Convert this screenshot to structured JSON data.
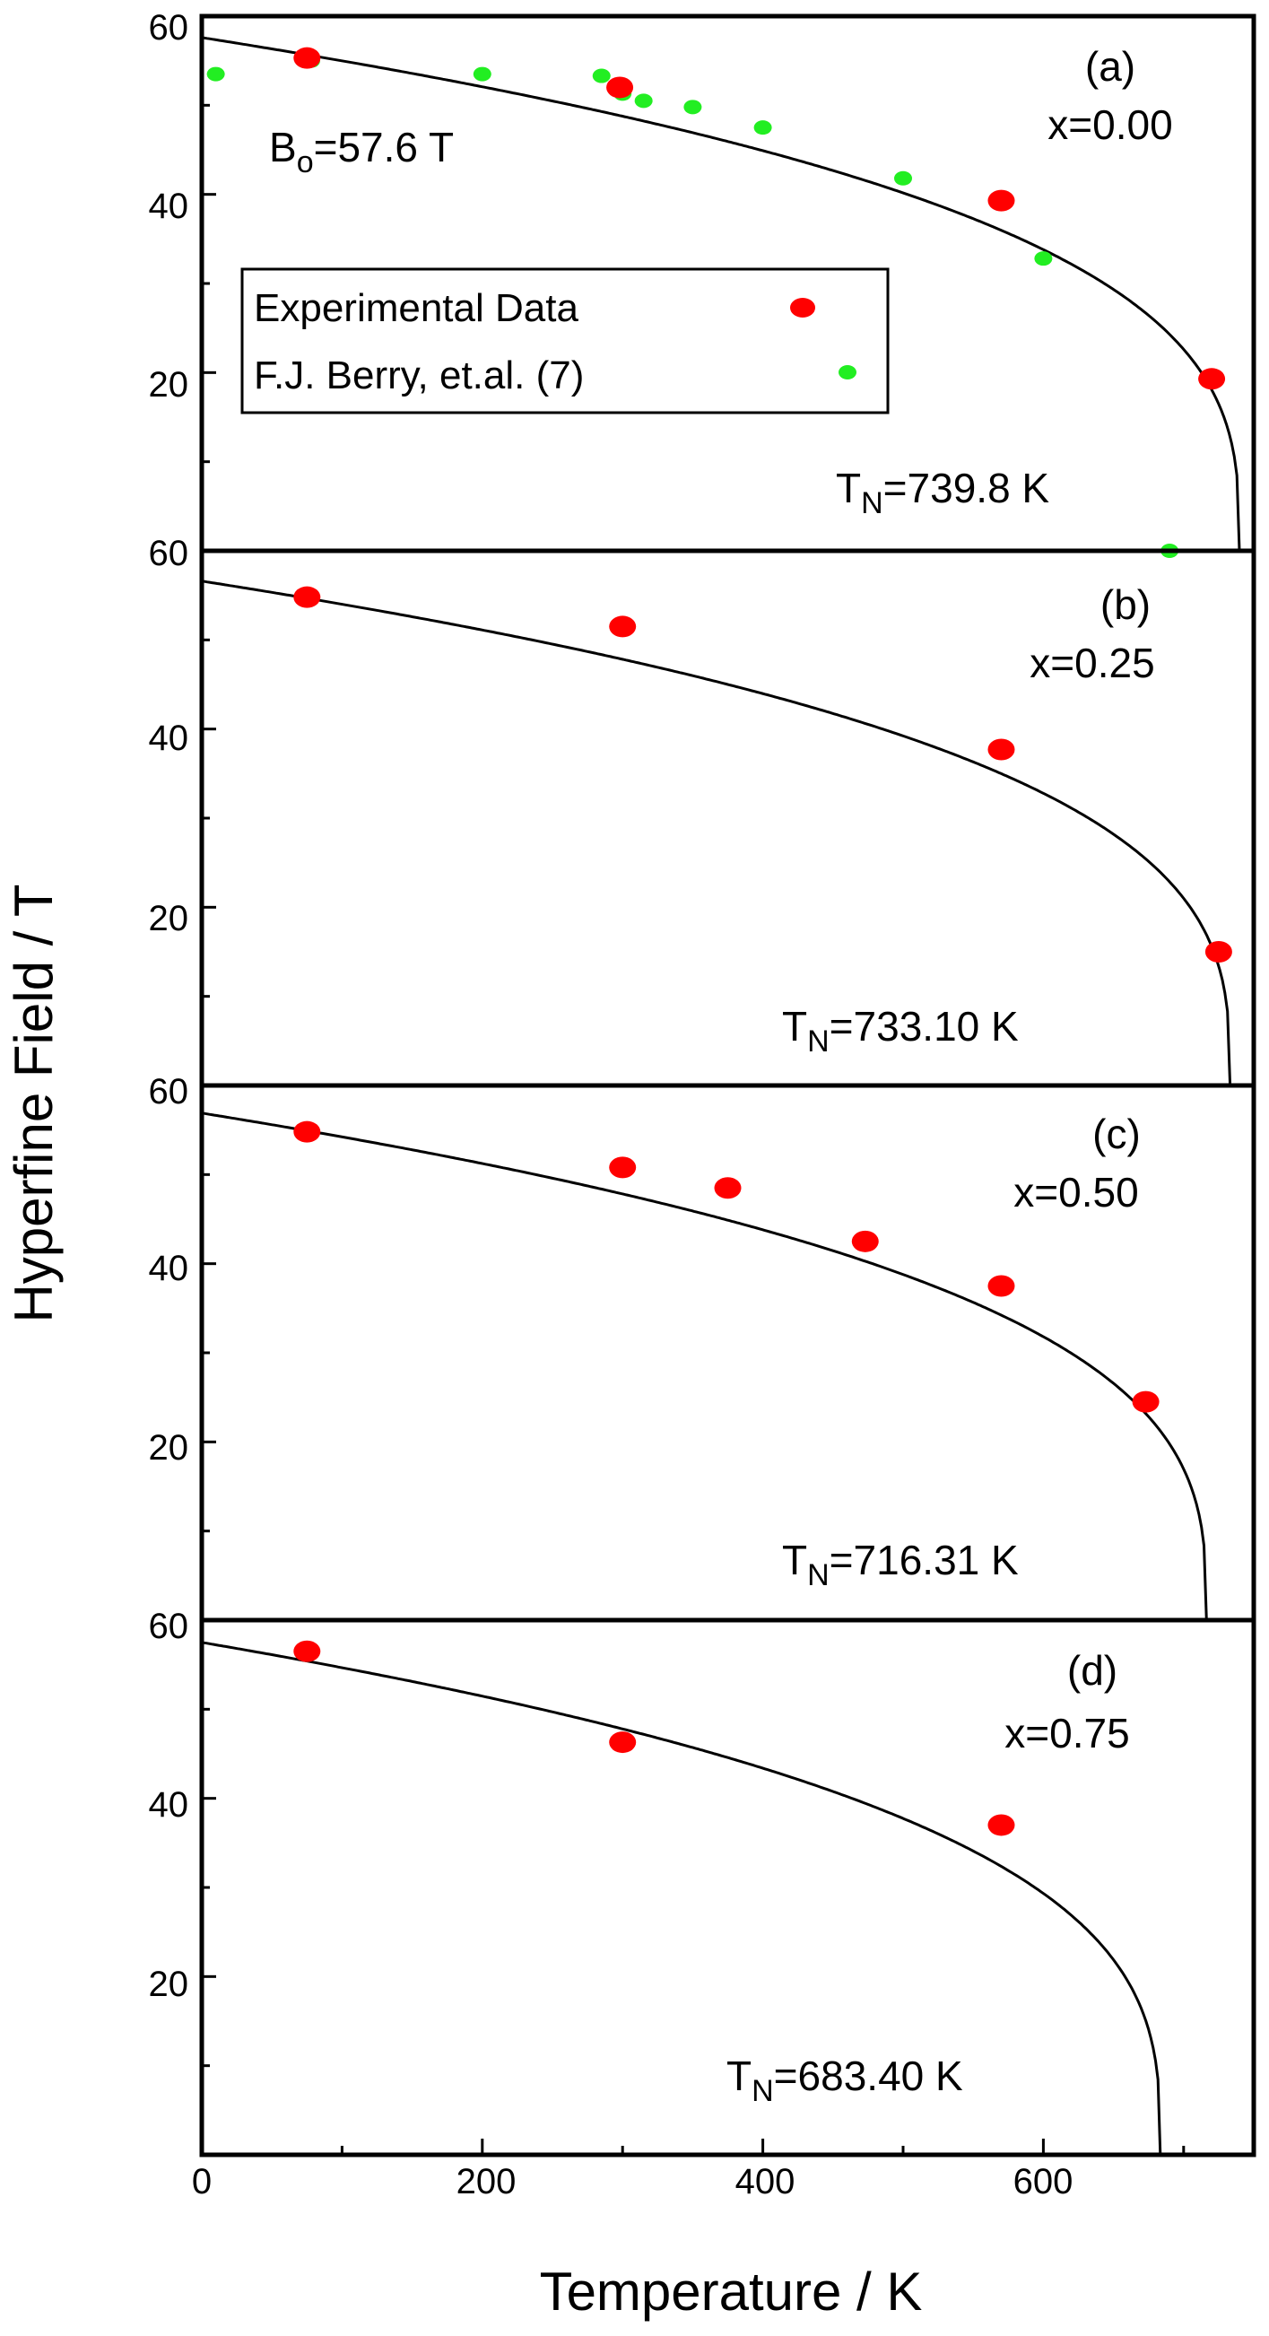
{
  "chart_data": {
    "type": "scatter",
    "ylabel": "Hyperfine Field / T",
    "xlabel": "Temperature / K",
    "xlim": [
      0,
      750
    ],
    "xticks": [
      "0",
      "200",
      "400",
      "600"
    ],
    "legend": {
      "placement": "upper-left of panel (a)",
      "entries": [
        "Experimental Data",
        "F.J. Berry, et.al. (7)"
      ]
    },
    "colors": {
      "experimental": "#ff0000",
      "berry": "#22ee22",
      "fit": "#000000"
    },
    "panels": [
      {
        "label": "(a)",
        "composition": "x=0.00",
        "ylim": [
          0,
          60
        ],
        "yticks": [
          "60",
          "40",
          "20"
        ],
        "b0_prefix": "B",
        "b0_sub": "o",
        "b0_rest": "=57.6 T",
        "tn_prefix": "T",
        "tn_sub": "N",
        "tn_rest": "=739.8 K",
        "TN": 739.8,
        "B0": 57.6,
        "experimental": [
          [
            75,
            55.3
          ],
          [
            298,
            52.0
          ],
          [
            570,
            39.3
          ],
          [
            720,
            19.3
          ]
        ],
        "berry": [
          [
            10,
            53.5
          ],
          [
            78,
            55.0
          ],
          [
            200,
            53.5
          ],
          [
            285,
            53.3
          ],
          [
            300,
            51.3
          ],
          [
            315,
            50.5
          ],
          [
            350,
            49.8
          ],
          [
            400,
            47.5
          ],
          [
            500,
            41.8
          ],
          [
            600,
            32.8
          ],
          [
            690,
            0
          ]
        ]
      },
      {
        "label": "(b)",
        "composition": "x=0.25",
        "ylim": [
          0,
          60
        ],
        "yticks": [
          "60",
          "40",
          "20"
        ],
        "tn_prefix": "T",
        "tn_sub": "N",
        "tn_rest": "=733.10 K",
        "TN": 733.1,
        "B0": 56.6,
        "experimental": [
          [
            75,
            54.8
          ],
          [
            300,
            51.5
          ],
          [
            570,
            37.7
          ],
          [
            725,
            15.0
          ]
        ]
      },
      {
        "label": "(c)",
        "composition": "x=0.50",
        "ylim": [
          0,
          60
        ],
        "yticks": [
          "60",
          "40",
          "20"
        ],
        "tn_prefix": "T",
        "tn_sub": "N",
        "tn_rest": "=716.31 K",
        "TN": 716.31,
        "B0": 56.9,
        "experimental": [
          [
            75,
            54.8
          ],
          [
            300,
            50.8
          ],
          [
            375,
            48.5
          ],
          [
            473,
            42.5
          ],
          [
            570,
            37.5
          ],
          [
            673,
            24.5
          ]
        ]
      },
      {
        "label": "(d)",
        "composition": "x=0.75",
        "ylim": [
          0,
          60
        ],
        "yticks": [
          "60",
          "40",
          "20"
        ],
        "tn_prefix": "T",
        "tn_sub": "N",
        "tn_rest": "=683.40 K",
        "TN": 683.4,
        "B0": 57.5,
        "experimental": [
          [
            75,
            56.5
          ],
          [
            300,
            46.3
          ],
          [
            570,
            37.0
          ]
        ]
      }
    ]
  }
}
